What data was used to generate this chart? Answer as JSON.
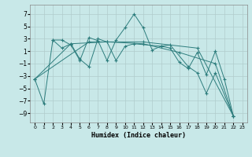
{
  "title": "",
  "xlabel": "Humidex (Indice chaleur)",
  "ylabel": "",
  "bg_color": "#c8e8e8",
  "line_color": "#2d7d7d",
  "xlim": [
    -0.5,
    23.5
  ],
  "ylim": [
    -10.5,
    8.5
  ],
  "yticks": [
    -9,
    -7,
    -5,
    -3,
    -1,
    1,
    3,
    5,
    7
  ],
  "xticks": [
    0,
    1,
    2,
    3,
    4,
    5,
    6,
    7,
    8,
    9,
    10,
    11,
    12,
    13,
    14,
    15,
    16,
    17,
    18,
    19,
    20,
    21,
    22,
    23
  ],
  "lines": [
    [
      0,
      -3.5,
      1,
      -7.5,
      2,
      2.8,
      3,
      2.8,
      4,
      2.0,
      5,
      -0.5,
      6,
      3.2,
      7,
      2.7,
      8,
      -0.5,
      9,
      2.8,
      10,
      4.8,
      11,
      7.0,
      12,
      4.8,
      13,
      1.2,
      14,
      1.8,
      15,
      1.5,
      16,
      -0.8,
      17,
      -1.8,
      18,
      0.8,
      19,
      -2.8,
      20,
      1.0,
      21,
      -3.5,
      22,
      -9.5
    ],
    [
      2,
      2.8,
      3,
      1.5,
      4,
      2.2,
      5,
      -0.3,
      6,
      -1.5,
      7,
      3.0,
      8,
      2.5,
      9,
      -0.5,
      10,
      1.8,
      11,
      2.2,
      14,
      1.8,
      15,
      2.0,
      17,
      -1.5,
      18,
      -2.5,
      19,
      -5.8,
      20,
      -2.5,
      22,
      -9.5
    ],
    [
      0,
      -3.5,
      4,
      2.2,
      8,
      2.5,
      12,
      2.2,
      16,
      0.8,
      20,
      -1.0,
      22,
      -9.5
    ],
    [
      0,
      -3.5,
      6,
      2.5,
      12,
      2.5,
      18,
      1.5,
      22,
      -9.5
    ]
  ],
  "figsize": [
    3.2,
    2.0
  ],
  "dpi": 100
}
